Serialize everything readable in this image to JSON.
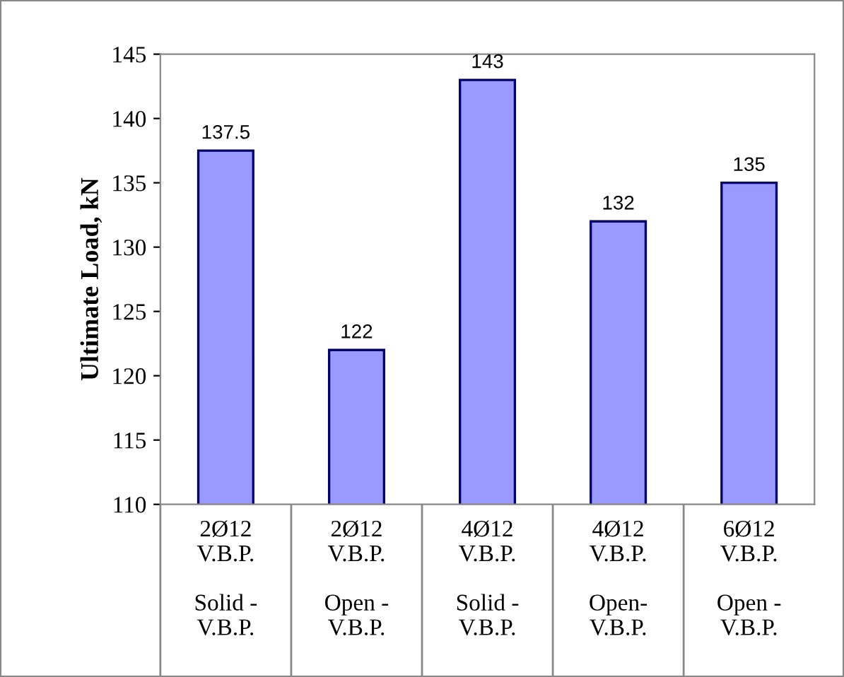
{
  "chart_data": {
    "type": "bar",
    "ylabel": "Ultimate Load, kN",
    "categories": [
      "2Ø12\nV.B.P.\n\nSolid -\nV.B.P.",
      "2Ø12\nV.B.P.\n\nOpen -\nV.B.P.",
      "4Ø12\nV.B.P.\n\nSolid -\nV.B.P.",
      "4Ø12\nV.B.P.\n\nOpen-\nV.B.P.",
      "6Ø12\nV.B.P.\n\nOpen -\nV.B.P."
    ],
    "values": [
      137.5,
      122,
      143,
      132,
      135
    ],
    "color": "#9999ff",
    "ylim": [
      110,
      145
    ],
    "yticks": [
      110,
      115,
      120,
      125,
      130,
      135,
      140,
      145
    ],
    "grid": false,
    "data_labels": true
  }
}
